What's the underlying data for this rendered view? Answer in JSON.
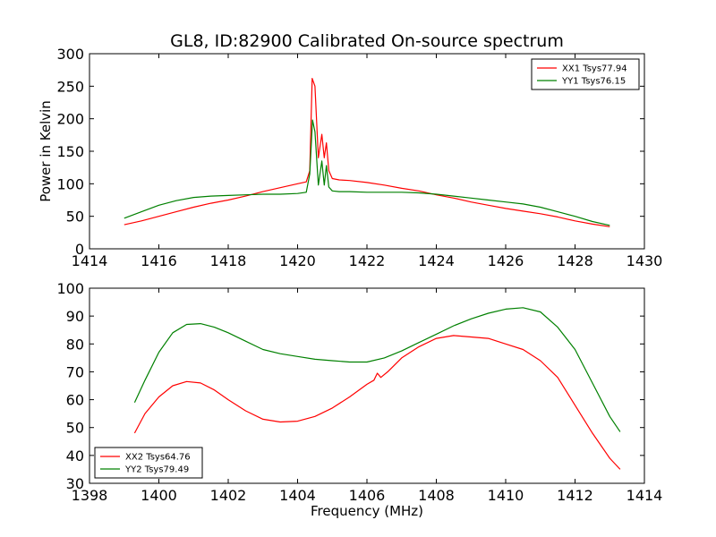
{
  "figure": {
    "title": "GL8, ID:82900 Calibrated On-source spectrum",
    "ylabel": "Power in Kelvin",
    "xlabel": "Frequency (MHz)"
  },
  "chart_data": [
    {
      "type": "line",
      "title": "GL8, ID:82900 Calibrated On-source spectrum",
      "ylabel": "Power in Kelvin",
      "xlabel": "",
      "xlim": [
        1414,
        1430
      ],
      "ylim": [
        0,
        300
      ],
      "x_ticks": [
        1414,
        1416,
        1418,
        1420,
        1422,
        1424,
        1426,
        1428,
        1430
      ],
      "y_ticks": [
        0,
        50,
        100,
        150,
        200,
        250,
        300
      ],
      "legend_position": "top-right",
      "series": [
        {
          "name": "XX1 Tsys77.94",
          "color": "#ff0000",
          "x": [
            1415.0,
            1415.5,
            1416.0,
            1416.5,
            1417.0,
            1417.5,
            1418.0,
            1418.5,
            1419.0,
            1419.5,
            1420.0,
            1420.25,
            1420.35,
            1420.42,
            1420.5,
            1420.6,
            1420.7,
            1420.77,
            1420.83,
            1420.9,
            1421.0,
            1421.2,
            1421.5,
            1422.0,
            1422.5,
            1423.0,
            1423.5,
            1424.0,
            1424.5,
            1425.0,
            1425.5,
            1426.0,
            1426.5,
            1427.0,
            1427.5,
            1428.0,
            1428.5,
            1429.0
          ],
          "y": [
            37,
            43,
            50,
            57,
            64,
            70,
            75,
            81,
            88,
            94,
            100,
            103,
            120,
            262,
            250,
            140,
            176,
            140,
            163,
            120,
            108,
            106,
            105,
            102,
            98,
            93,
            89,
            83,
            78,
            72,
            67,
            62,
            58,
            54,
            49,
            43,
            38,
            34
          ]
        },
        {
          "name": "YY1 Tsys76.15",
          "color": "#008000",
          "x": [
            1415.0,
            1415.5,
            1416.0,
            1416.5,
            1417.0,
            1417.5,
            1418.0,
            1418.5,
            1419.0,
            1419.5,
            1420.0,
            1420.25,
            1420.35,
            1420.43,
            1420.5,
            1420.6,
            1420.7,
            1420.77,
            1420.83,
            1420.9,
            1421.0,
            1421.2,
            1421.5,
            1422.0,
            1422.5,
            1423.0,
            1423.5,
            1424.0,
            1424.5,
            1425.0,
            1425.5,
            1426.0,
            1426.5,
            1427.0,
            1427.5,
            1428.0,
            1428.5,
            1429.0
          ],
          "y": [
            47,
            57,
            67,
            74,
            79,
            81,
            82,
            83,
            84,
            84,
            85,
            87,
            115,
            198,
            180,
            98,
            135,
            98,
            128,
            95,
            89,
            88,
            88,
            87,
            87,
            87,
            86,
            84,
            81,
            78,
            75,
            72,
            69,
            64,
            57,
            50,
            42,
            36
          ]
        }
      ]
    },
    {
      "type": "line",
      "title": "",
      "ylabel": "",
      "xlabel": "Frequency (MHz)",
      "xlim": [
        1398,
        1414
      ],
      "ylim": [
        30,
        100
      ],
      "x_ticks": [
        1398,
        1400,
        1402,
        1404,
        1406,
        1408,
        1410,
        1412,
        1414
      ],
      "y_ticks": [
        30,
        40,
        50,
        60,
        70,
        80,
        90,
        100
      ],
      "legend_position": "bottom-left",
      "series": [
        {
          "name": "XX2 Tsys64.76",
          "color": "#ff0000",
          "x": [
            1399.3,
            1399.6,
            1400.0,
            1400.4,
            1400.8,
            1401.2,
            1401.6,
            1402.0,
            1402.5,
            1403.0,
            1403.5,
            1404.0,
            1404.5,
            1405.0,
            1405.5,
            1406.0,
            1406.2,
            1406.3,
            1406.4,
            1406.6,
            1407.0,
            1407.5,
            1408.0,
            1408.5,
            1409.0,
            1409.5,
            1410.0,
            1410.5,
            1411.0,
            1411.5,
            1412.0,
            1412.5,
            1413.0,
            1413.3
          ],
          "y": [
            48,
            55,
            61,
            65,
            66.5,
            66,
            63.5,
            60,
            56,
            53,
            52,
            52.3,
            54,
            57,
            61,
            65.5,
            67,
            69.5,
            68,
            70,
            75,
            79,
            82,
            83,
            82.5,
            82,
            80,
            78,
            74,
            68,
            58,
            48,
            39,
            35
          ]
        },
        {
          "name": "YY2 Tsys79.49",
          "color": "#008000",
          "x": [
            1399.3,
            1399.6,
            1400.0,
            1400.4,
            1400.8,
            1401.2,
            1401.6,
            1402.0,
            1402.5,
            1403.0,
            1403.5,
            1404.0,
            1404.5,
            1405.0,
            1405.5,
            1406.0,
            1406.5,
            1407.0,
            1407.5,
            1408.0,
            1408.5,
            1409.0,
            1409.5,
            1410.0,
            1410.5,
            1411.0,
            1411.5,
            1412.0,
            1412.5,
            1413.0,
            1413.3
          ],
          "y": [
            59,
            67,
            77,
            84,
            87,
            87.3,
            86,
            84,
            81,
            78,
            76.5,
            75.5,
            74.5,
            74,
            73.5,
            73.5,
            75,
            77.5,
            80.5,
            83.5,
            86.5,
            89,
            91,
            92.5,
            93,
            91.5,
            86,
            78,
            66,
            54,
            48.5
          ]
        }
      ]
    }
  ]
}
